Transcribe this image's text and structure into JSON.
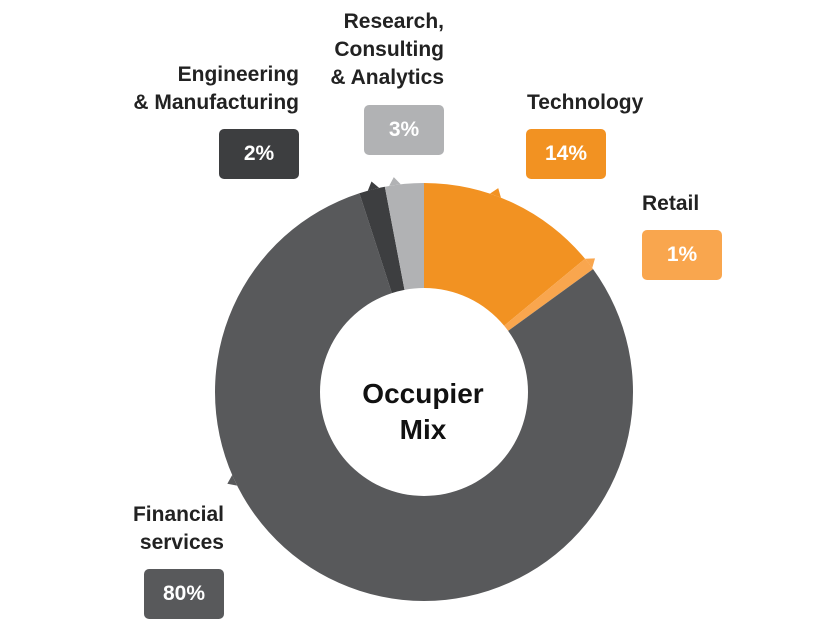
{
  "chart_data": {
    "type": "pie",
    "center_label": "Occupier\nMix",
    "slices": [
      {
        "label": "Technology",
        "value": 14,
        "display": "14%",
        "color": "#F29222"
      },
      {
        "label": "Retail",
        "value": 1,
        "display": "1%",
        "color": "#F9A64E"
      },
      {
        "label": "Financial\nservices",
        "value": 80,
        "display": "80%",
        "color": "#58595B"
      },
      {
        "label": "Engineering\n& Manufacturing",
        "value": 2,
        "display": "2%",
        "color": "#3D3E40"
      },
      {
        "label": "Research,\nConsulting\n& Analytics",
        "value": 3,
        "display": "3%",
        "color": "#B1B2B4"
      }
    ]
  }
}
